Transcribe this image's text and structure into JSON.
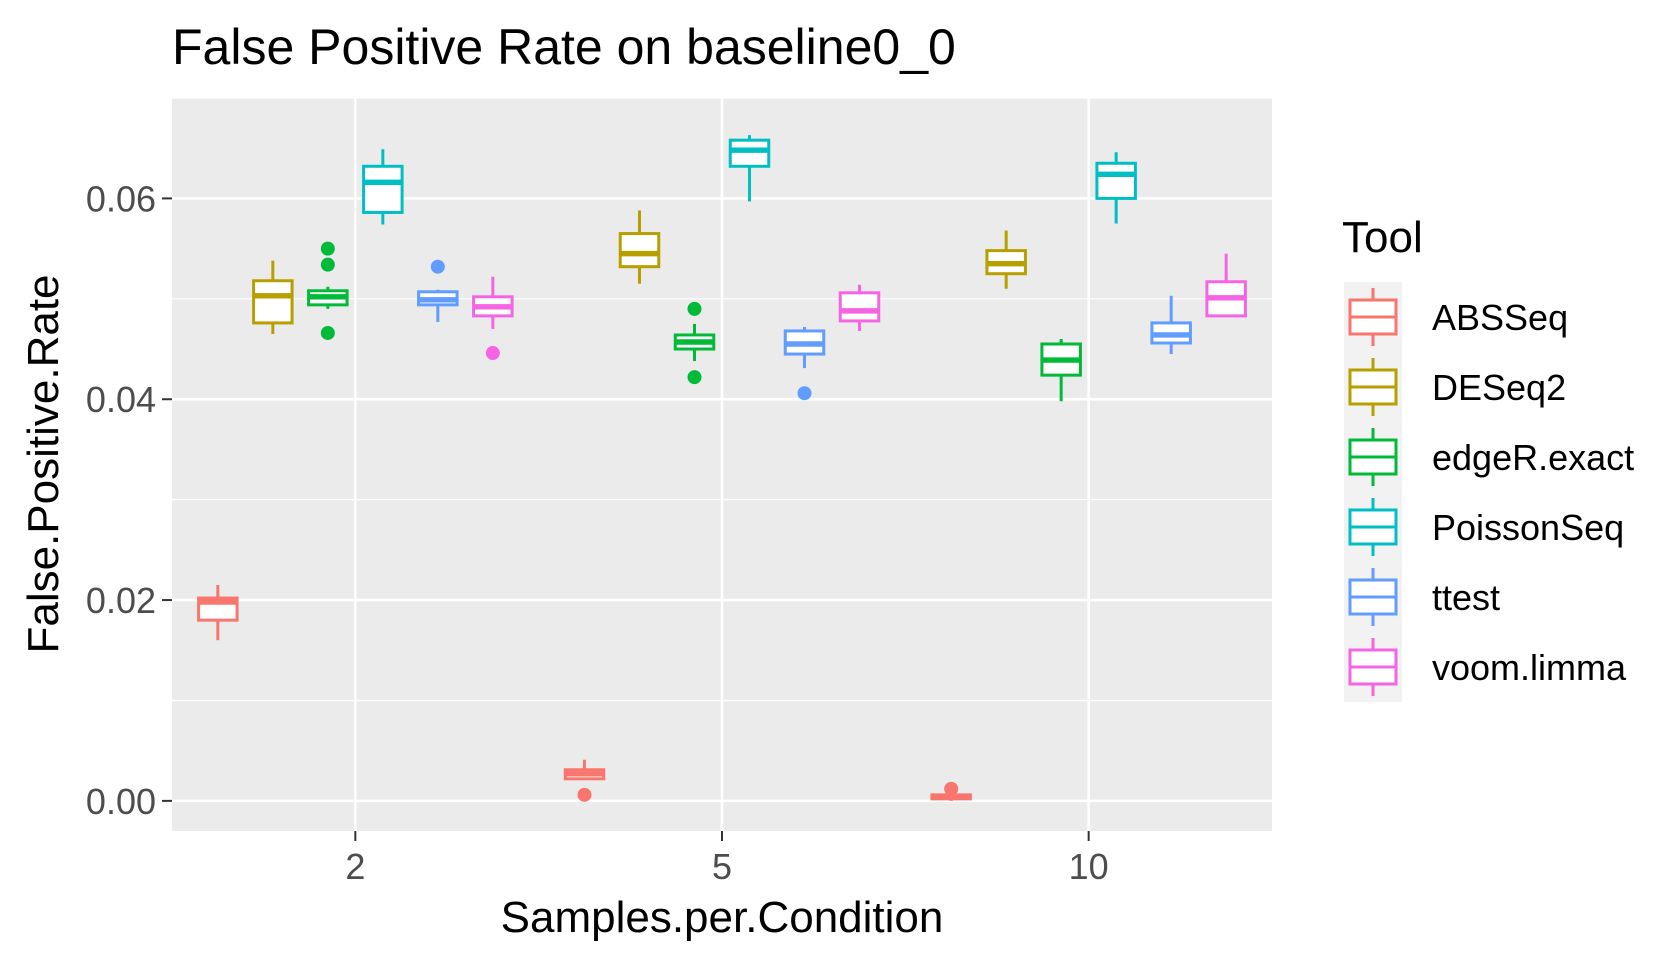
{
  "chart_data": {
    "type": "boxplot",
    "title": "False Positive Rate on baseline0_0",
    "xlabel": "Samples.per.Condition",
    "ylabel": "False.Positive.Rate",
    "categories": [
      "2",
      "5",
      "10"
    ],
    "ylim": [
      -0.003,
      0.07
    ],
    "yticks": [
      0,
      0.02,
      0.04,
      0.06
    ],
    "ytick_labels": [
      "0.00",
      "0.02",
      "0.04",
      "0.06"
    ],
    "grid": true,
    "legend": {
      "title": "Tool",
      "position": "right"
    },
    "series": [
      {
        "name": "ABSSeq",
        "color": "#F8766D",
        "boxes": [
          {
            "category": "2",
            "min": 0.016,
            "q1": 0.018,
            "median": 0.0198,
            "q3": 0.0202,
            "max": 0.0215,
            "outliers": []
          },
          {
            "category": "5",
            "min": 0.0022,
            "q1": 0.0022,
            "median": 0.0027,
            "q3": 0.0031,
            "max": 0.0041,
            "outliers": [
              0.0006
            ]
          },
          {
            "category": "10",
            "min": 0.0,
            "q1": 0.0002,
            "median": 0.0004,
            "q3": 0.0006,
            "max": 0.0008,
            "outliers": [
              0.0012
            ]
          }
        ]
      },
      {
        "name": "DESeq2",
        "color": "#B79F00",
        "boxes": [
          {
            "category": "2",
            "min": 0.0465,
            "q1": 0.0476,
            "median": 0.0503,
            "q3": 0.0518,
            "max": 0.0538,
            "outliers": []
          },
          {
            "category": "5",
            "min": 0.0515,
            "q1": 0.0532,
            "median": 0.0545,
            "q3": 0.0565,
            "max": 0.0588,
            "outliers": []
          },
          {
            "category": "10",
            "min": 0.051,
            "q1": 0.0525,
            "median": 0.0535,
            "q3": 0.0548,
            "max": 0.0568,
            "outliers": []
          }
        ]
      },
      {
        "name": "edgeR.exact",
        "color": "#00BA38",
        "boxes": [
          {
            "category": "2",
            "min": 0.049,
            "q1": 0.0494,
            "median": 0.0502,
            "q3": 0.0508,
            "max": 0.0512,
            "outliers": [
              0.055,
              0.0534,
              0.0466
            ]
          },
          {
            "category": "5",
            "min": 0.0438,
            "q1": 0.045,
            "median": 0.0457,
            "q3": 0.0464,
            "max": 0.0475,
            "outliers": [
              0.049,
              0.0422
            ]
          },
          {
            "category": "10",
            "min": 0.0398,
            "q1": 0.0424,
            "median": 0.0439,
            "q3": 0.0455,
            "max": 0.046,
            "outliers": []
          }
        ]
      },
      {
        "name": "PoissonSeq",
        "color": "#00BFC4",
        "boxes": [
          {
            "category": "2",
            "min": 0.0574,
            "q1": 0.0586,
            "median": 0.0616,
            "q3": 0.0632,
            "max": 0.0649,
            "outliers": []
          },
          {
            "category": "5",
            "min": 0.0597,
            "q1": 0.0632,
            "median": 0.0648,
            "q3": 0.0658,
            "max": 0.0663,
            "outliers": []
          },
          {
            "category": "10",
            "min": 0.0575,
            "q1": 0.06,
            "median": 0.0624,
            "q3": 0.0635,
            "max": 0.0646,
            "outliers": []
          }
        ]
      },
      {
        "name": "ttest",
        "color": "#619CFF",
        "boxes": [
          {
            "category": "2",
            "min": 0.0477,
            "q1": 0.0494,
            "median": 0.0499,
            "q3": 0.0507,
            "max": 0.0509,
            "outliers": [
              0.0532
            ]
          },
          {
            "category": "5",
            "min": 0.0431,
            "q1": 0.0445,
            "median": 0.0455,
            "q3": 0.0468,
            "max": 0.0472,
            "outliers": [
              0.0406
            ]
          },
          {
            "category": "10",
            "min": 0.0445,
            "q1": 0.0456,
            "median": 0.0464,
            "q3": 0.0476,
            "max": 0.0503,
            "outliers": []
          }
        ]
      },
      {
        "name": "voom.limma",
        "color": "#F564E3",
        "boxes": [
          {
            "category": "2",
            "min": 0.047,
            "q1": 0.0483,
            "median": 0.0492,
            "q3": 0.0502,
            "max": 0.0522,
            "outliers": [
              0.0446
            ]
          },
          {
            "category": "5",
            "min": 0.0468,
            "q1": 0.0478,
            "median": 0.0488,
            "q3": 0.0506,
            "max": 0.0514,
            "outliers": []
          },
          {
            "category": "10",
            "min": 0.0482,
            "q1": 0.0483,
            "median": 0.0501,
            "q3": 0.0517,
            "max": 0.0545,
            "outliers": []
          }
        ]
      }
    ]
  }
}
